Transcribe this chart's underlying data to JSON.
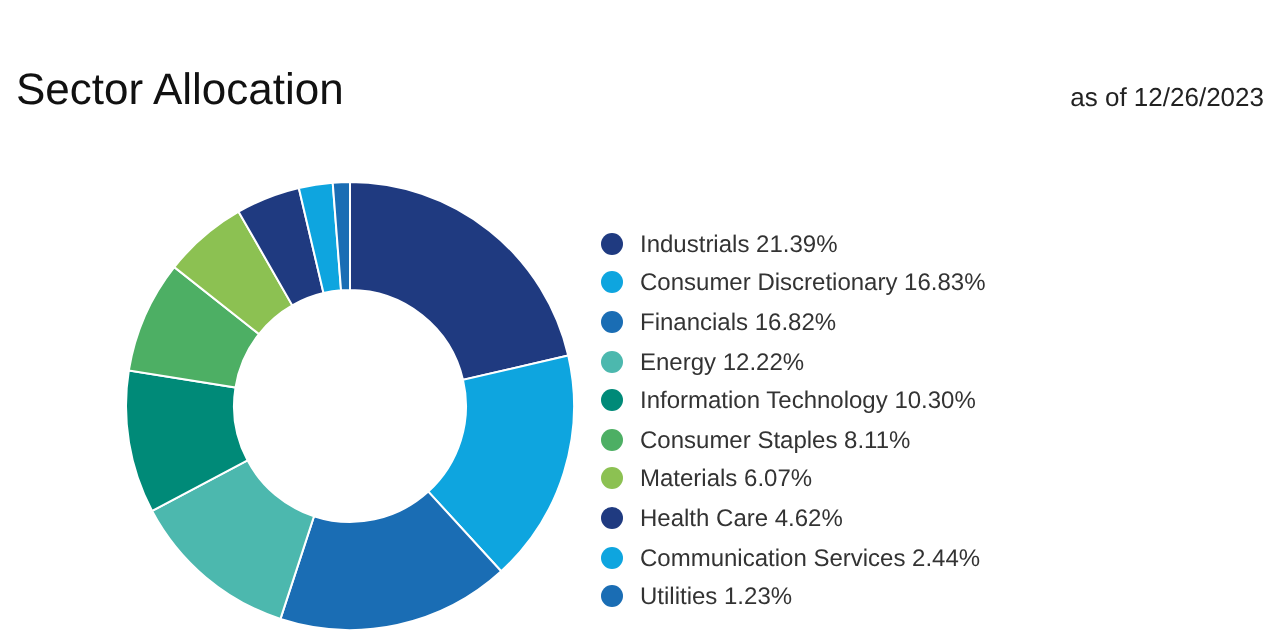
{
  "chart_data": {
    "type": "donut",
    "title": "Sector Allocation",
    "subtitle": "as of 12/26/2023",
    "categories": [
      "Industrials",
      "Consumer Discretionary",
      "Financials",
      "Energy",
      "Information Technology",
      "Consumer Staples",
      "Materials",
      "Health Care",
      "Communication Services",
      "Utilities"
    ],
    "values": [
      21.39,
      16.83,
      16.82,
      12.22,
      10.3,
      8.11,
      6.07,
      4.62,
      2.44,
      1.23
    ],
    "value_labels": [
      "21.39%",
      "16.83%",
      "16.82%",
      "12.22%",
      "10.30%",
      "8.11%",
      "6.07%",
      "4.62%",
      "2.44%",
      "1.23%"
    ],
    "colors": [
      "#1f3a80",
      "#0ea5df",
      "#1a6db4",
      "#4cb8ae",
      "#008a78",
      "#4daf64",
      "#8cc152",
      "#1f3a80",
      "#0ea5df",
      "#1a6db4"
    ],
    "legend": "right"
  }
}
